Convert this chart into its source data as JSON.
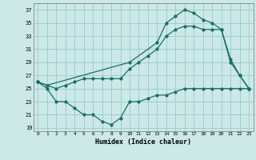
{
  "xlabel": "Humidex (Indice chaleur)",
  "background_color": "#cce8e8",
  "grid_color": "#9ecece",
  "line_color": "#1a6e62",
  "x_ticks": [
    0,
    1,
    2,
    3,
    4,
    5,
    6,
    7,
    8,
    9,
    10,
    11,
    12,
    13,
    14,
    15,
    16,
    17,
    18,
    19,
    20,
    21,
    22,
    23
  ],
  "y_ticks": [
    19,
    21,
    23,
    25,
    27,
    29,
    31,
    33,
    35,
    37
  ],
  "xlim": [
    -0.5,
    23.5
  ],
  "ylim": [
    18.5,
    38
  ],
  "series1_x": [
    0,
    1,
    2,
    3,
    4,
    5,
    6,
    7,
    8,
    9,
    10,
    11,
    12,
    13,
    14,
    15,
    16,
    17,
    18,
    19,
    20,
    21,
    22,
    23
  ],
  "series1_y": [
    26,
    25,
    23,
    23,
    22,
    21,
    21,
    20,
    19.5,
    20.5,
    23,
    23,
    23.5,
    24,
    24,
    24.5,
    25,
    25,
    25,
    25,
    25,
    25,
    25,
    25
  ],
  "series2_x": [
    0,
    1,
    2,
    3,
    4,
    5,
    6,
    7,
    8,
    9,
    10,
    11,
    12,
    13,
    14,
    15,
    16,
    17,
    18,
    19,
    20,
    21,
    22,
    23
  ],
  "series2_y": [
    26,
    25.5,
    25,
    25.5,
    26,
    26.5,
    26.5,
    26.5,
    26.5,
    26.5,
    28,
    29,
    30,
    31,
    33,
    34,
    34.5,
    34.5,
    34,
    34,
    34,
    29,
    27,
    25
  ],
  "series3_x": [
    0,
    1,
    10,
    13,
    14,
    15,
    16,
    17,
    18,
    19,
    20,
    21,
    22,
    23
  ],
  "series3_y": [
    26,
    25.5,
    29,
    32,
    35,
    36,
    37,
    36.5,
    35.5,
    35,
    34,
    29.5,
    27,
    25
  ]
}
